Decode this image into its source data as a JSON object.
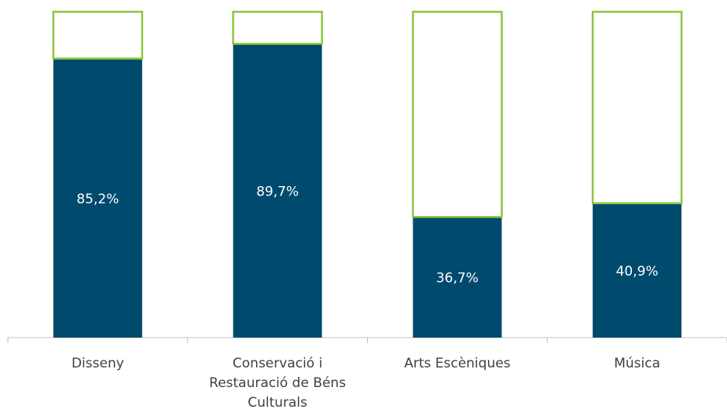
{
  "chart_data": {
    "type": "stacked_bar",
    "categories": [
      "Disseny",
      "Conservació i Restauració de Béns Culturals",
      "Arts Escèniques",
      "Música"
    ],
    "series": [
      {
        "color": "#004a6e",
        "values": [
          85.2,
          89.7,
          36.7,
          40.9
        ],
        "value_labels": [
          "85,2%",
          "89,7%",
          "36,7%",
          "40,9%"
        ]
      },
      {
        "color": "#8cc63f",
        "values": [
          14.8,
          10.3,
          63.3,
          59.1
        ]
      }
    ],
    "ylim": [
      0,
      100
    ]
  }
}
